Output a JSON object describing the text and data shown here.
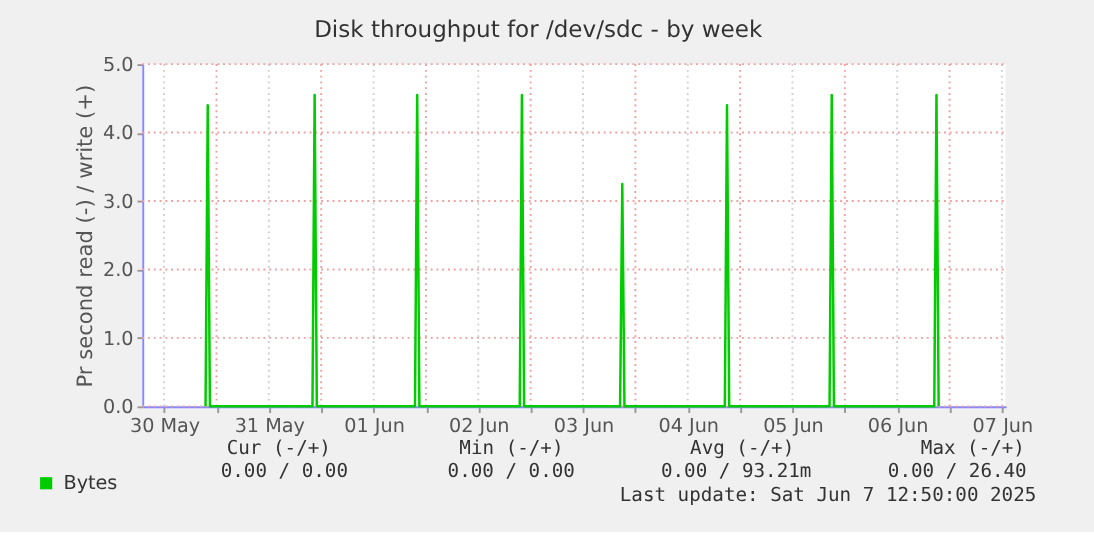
{
  "chart_data": {
    "type": "line",
    "title": "Disk throughput for /dev/sdc - by week",
    "ylabel": "Pr second read (-) / write (+)",
    "x": [
      "2025-05-30T21:30",
      "2025-05-30T22:00",
      "2025-05-30T22:30",
      "2025-05-31T22:00",
      "2025-05-31T22:30",
      "2025-05-31T23:00",
      "2025-06-01T21:30",
      "2025-06-01T22:00",
      "2025-06-01T22:30",
      "2025-06-02T21:30",
      "2025-06-02T22:00",
      "2025-06-02T22:30",
      "2025-06-03T20:30",
      "2025-06-03T21:00",
      "2025-06-03T21:30",
      "2025-06-04T20:30",
      "2025-06-04T21:00",
      "2025-06-04T21:30",
      "2025-06-05T20:30",
      "2025-06-05T21:00",
      "2025-06-05T21:30",
      "2025-06-06T20:30",
      "2025-06-06T21:00",
      "2025-06-06T21:30"
    ],
    "series": [
      {
        "name": "Bytes",
        "color": "#00cc00",
        "values": [
          0,
          4.4,
          0,
          0,
          4.55,
          0,
          0,
          4.55,
          0,
          0,
          4.55,
          0,
          0,
          3.25,
          0,
          0,
          4.4,
          0,
          0,
          4.55,
          0,
          0,
          4.55,
          0
        ]
      }
    ],
    "xlim": [
      "2025-05-30T07:00",
      "2025-06-07T12:50"
    ],
    "xticks": [
      {
        "value": "2025-05-30T12:00",
        "label": "30 May"
      },
      {
        "value": "2025-05-31T00:00",
        "label": null
      },
      {
        "value": "2025-05-31T12:00",
        "label": "31 May"
      },
      {
        "value": "2025-06-01T00:00",
        "label": null
      },
      {
        "value": "2025-06-01T12:00",
        "label": "01 Jun"
      },
      {
        "value": "2025-06-02T00:00",
        "label": null
      },
      {
        "value": "2025-06-02T12:00",
        "label": "02 Jun"
      },
      {
        "value": "2025-06-03T00:00",
        "label": null
      },
      {
        "value": "2025-06-03T12:00",
        "label": "03 Jun"
      },
      {
        "value": "2025-06-04T00:00",
        "label": null
      },
      {
        "value": "2025-06-04T12:00",
        "label": "04 Jun"
      },
      {
        "value": "2025-06-05T00:00",
        "label": null
      },
      {
        "value": "2025-06-05T12:00",
        "label": "05 Jun"
      },
      {
        "value": "2025-06-06T00:00",
        "label": null
      },
      {
        "value": "2025-06-06T12:00",
        "label": "06 Jun"
      },
      {
        "value": "2025-06-07T00:00",
        "label": null
      },
      {
        "value": "2025-06-07T12:00",
        "label": "07 Jun"
      }
    ],
    "ylim": [
      0,
      5
    ],
    "yticks": [
      {
        "value": 0,
        "label": "0.0"
      },
      {
        "value": 1,
        "label": "1.0"
      },
      {
        "value": 2,
        "label": "2.0"
      },
      {
        "value": 3,
        "label": "3.0"
      },
      {
        "value": 4,
        "label": "4.0"
      },
      {
        "value": 5,
        "label": "5.0"
      }
    ],
    "grid": true,
    "legend": "bottom",
    "marker": "none",
    "line_style": "solid",
    "annotations": [
      "Cur (-/+)",
      "0.00 /    0.00",
      "Min (-/+)",
      "0.00 /    0.00",
      "Avg (-/+)",
      "0.00 /  93.21m",
      "Max (-/+)",
      "0.00 /  26.40",
      "Last update: Sat Jun  7 12:50:00 2025"
    ]
  }
}
